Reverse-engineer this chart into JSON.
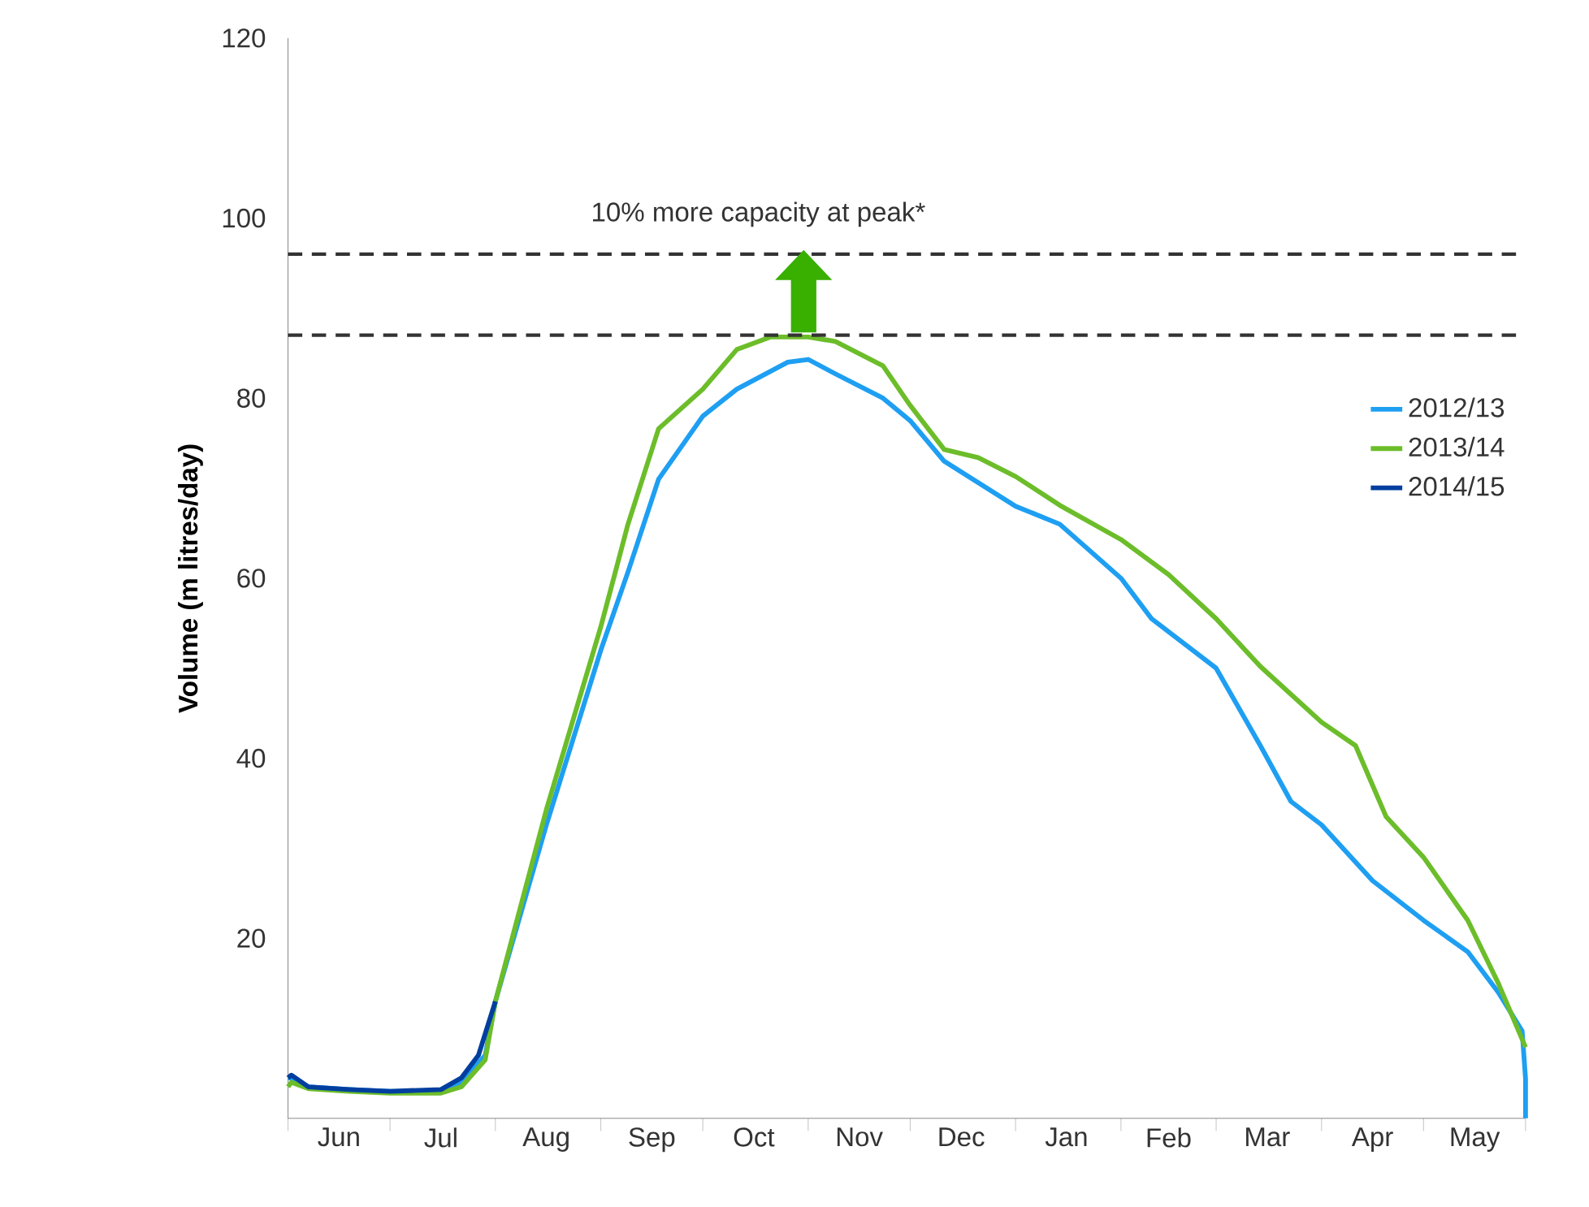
{
  "chart_data": {
    "type": "line",
    "ylabel": "Volume (m litres/day)",
    "annotations": [
      "10% more capacity at peak*"
    ],
    "xlim": [
      "2012-06-01",
      "2013-05-31"
    ],
    "ylim": [
      0,
      120
    ],
    "xticks": [
      {
        "value": "2012-06-01",
        "label": null
      },
      {
        "value": "2012-07-01",
        "label": null
      },
      {
        "value": "2012-08-01",
        "label": null
      },
      {
        "value": "2012-09-01",
        "label": null
      },
      {
        "value": "2012-10-01",
        "label": null
      },
      {
        "value": "2012-11-01",
        "label": null
      },
      {
        "value": "2012-12-01",
        "label": null
      },
      {
        "value": "2013-01-01",
        "label": null
      },
      {
        "value": "2013-02-01",
        "label": null
      },
      {
        "value": "2013-03-01",
        "label": null
      },
      {
        "value": "2013-04-01",
        "label": null
      },
      {
        "value": "2013-05-01",
        "label": null
      },
      {
        "value": "2013-05-31",
        "label": null
      },
      {
        "value": "2012-06-16",
        "label": "Jun"
      },
      {
        "value": "2012-07-16",
        "label": "Jul"
      },
      {
        "value": "2012-08-16",
        "label": "Aug"
      },
      {
        "value": "2012-09-16",
        "label": "Sep"
      },
      {
        "value": "2012-10-16",
        "label": "Oct"
      },
      {
        "value": "2012-11-16",
        "label": "Nov"
      },
      {
        "value": "2012-12-16",
        "label": "Dec"
      },
      {
        "value": "2013-01-16",
        "label": "Jan"
      },
      {
        "value": "2013-02-15",
        "label": "Feb"
      },
      {
        "value": "2013-03-16",
        "label": "Mar"
      },
      {
        "value": "2013-04-16",
        "label": "Apr"
      },
      {
        "value": "2013-05-16",
        "label": "May"
      }
    ],
    "yticks": [
      20,
      40,
      60,
      80,
      100,
      120
    ],
    "ref_lines": [
      {
        "axis": "y",
        "value": 96,
        "color": "#333333",
        "line_style": "dashed"
      },
      {
        "axis": "y",
        "value": 87,
        "color": "#333333",
        "line_style": "dashed"
      }
    ],
    "legend": "right",
    "grid": false,
    "marker": "none",
    "line_style": "solid",
    "series": [
      {
        "name": "2012/13",
        "color": "#1e9ff2",
        "x": [
          "2012-06-01",
          "2012-06-02",
          "2012-06-07",
          "2012-06-19",
          "2012-07-01",
          "2012-07-16",
          "2012-07-22",
          "2012-07-29",
          "2012-08-01",
          "2012-08-16",
          "2012-09-01",
          "2012-09-09",
          "2012-09-18",
          "2012-10-01",
          "2012-10-11",
          "2012-10-26",
          "2012-11-01",
          "2012-11-09",
          "2012-11-23",
          "2012-12-01",
          "2012-12-11",
          "2013-01-01",
          "2013-01-14",
          "2013-02-01",
          "2013-02-10",
          "2013-03-01",
          "2013-03-14",
          "2013-03-23",
          "2013-04-01",
          "2013-04-16",
          "2013-05-01",
          "2013-05-14",
          "2013-05-23",
          "2013-05-30",
          "2013-05-31",
          "2013-05-31"
        ],
        "values": [
          4.5,
          4.5,
          3.5,
          3.2,
          3,
          3,
          4,
          7,
          13,
          32.6,
          52,
          60.7,
          71,
          78,
          81,
          84,
          84.3,
          82.7,
          80,
          77.5,
          73,
          68,
          66,
          60,
          55.5,
          50,
          41.4,
          35.2,
          32.6,
          26.4,
          22,
          18.5,
          14,
          9.7,
          4.4,
          0
        ]
      },
      {
        "name": "2013/14",
        "color": "#6cbd2a",
        "x": [
          "2012-06-01",
          "2012-06-02",
          "2012-06-07",
          "2012-06-19",
          "2012-07-01",
          "2012-07-16",
          "2012-07-22",
          "2012-07-29",
          "2012-08-01",
          "2012-08-16",
          "2012-09-01",
          "2012-09-09",
          "2012-09-18",
          "2012-10-01",
          "2012-10-11",
          "2012-10-21",
          "2012-11-01",
          "2012-11-09",
          "2012-11-23",
          "2012-12-01",
          "2012-12-11",
          "2012-12-21",
          "2013-01-01",
          "2013-01-14",
          "2013-02-01",
          "2013-02-15",
          "2013-03-01",
          "2013-03-14",
          "2013-04-01",
          "2013-04-11",
          "2013-04-20",
          "2013-05-01",
          "2013-05-14",
          "2013-05-23",
          "2013-05-31"
        ],
        "values": [
          3.5,
          4,
          3.3,
          3,
          2.8,
          2.8,
          3.5,
          6.5,
          13,
          34.3,
          54.6,
          66,
          76.6,
          81,
          85.4,
          86.8,
          86.8,
          86.3,
          83.6,
          79.2,
          74.3,
          73.4,
          71.3,
          68.1,
          64.3,
          60.4,
          55.5,
          50.2,
          44,
          41.4,
          33.5,
          29,
          22,
          15,
          7.9
        ]
      },
      {
        "name": "2014/15",
        "color": "#003f9f",
        "x": [
          "2012-06-01",
          "2012-06-02",
          "2012-06-07",
          "2012-06-19",
          "2012-07-01",
          "2012-07-16",
          "2012-07-22",
          "2012-07-27",
          "2012-08-01"
        ],
        "values": [
          4.5,
          4.8,
          3.5,
          3.2,
          3,
          3.2,
          4.5,
          7,
          13
        ]
      }
    ]
  }
}
